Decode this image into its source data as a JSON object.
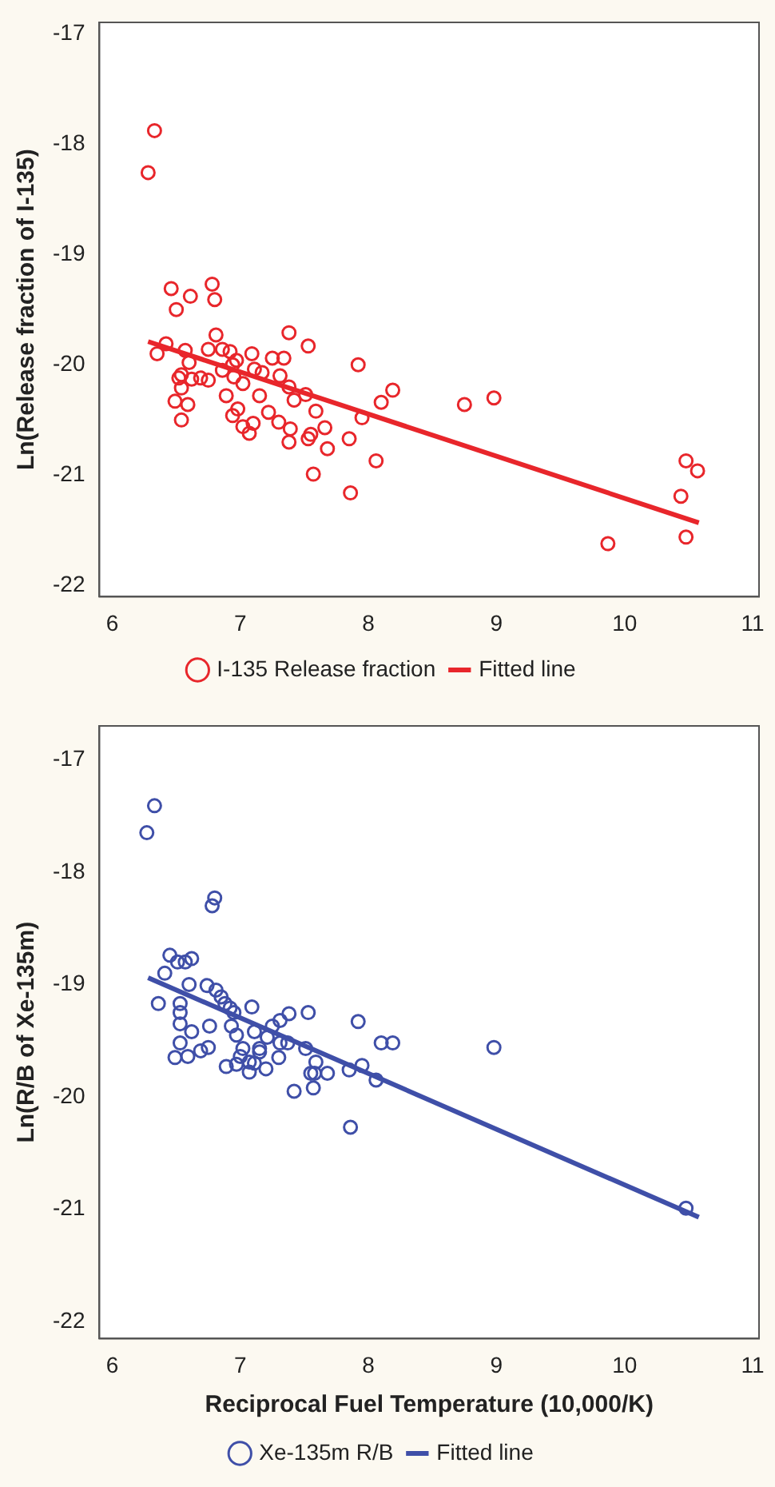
{
  "chart_data": [
    {
      "type": "scatter",
      "ylabel": "Ln(Release fraction of I-135)",
      "xlim": [
        5.9,
        11.05
      ],
      "xticks": [
        6,
        7,
        8,
        9,
        10,
        11
      ],
      "ylim": [
        -22.1,
        -16.9
      ],
      "yticks": [
        -22,
        -21,
        -20,
        -19,
        -18,
        -17
      ],
      "grid": false,
      "legend": "bottom",
      "series": [
        {
          "name": "I-135 Release fraction",
          "color": "#e8262b",
          "marker": "circle",
          "x": [
            6.33,
            6.28,
            6.46,
            6.5,
            6.61,
            6.78,
            6.8,
            6.81,
            6.42,
            6.35,
            6.57,
            6.6,
            6.54,
            6.52,
            6.54,
            6.62,
            6.69,
            6.75,
            6.49,
            6.59,
            6.54,
            6.75,
            6.86,
            6.92,
            6.97,
            6.94,
            6.86,
            6.95,
            7.02,
            7.09,
            7.11,
            7.17,
            7.25,
            7.34,
            7.31,
            7.38,
            7.53,
            7.38,
            7.42,
            7.51,
            6.89,
            7.15,
            6.98,
            6.94,
            7.02,
            7.1,
            7.07,
            7.22,
            7.3,
            7.39,
            7.38,
            7.59,
            7.55,
            7.53,
            7.66,
            7.68,
            7.57,
            7.85,
            7.86,
            7.92,
            7.95,
            8.06,
            8.1,
            8.19,
            8.75,
            8.98,
            10.48,
            10.57,
            10.44,
            10.48,
            9.87
          ],
          "values": [
            -17.88,
            -18.26,
            -19.31,
            -19.5,
            -19.38,
            -19.27,
            -19.41,
            -19.73,
            -19.81,
            -19.9,
            -19.87,
            -19.98,
            -20.09,
            -20.12,
            -20.21,
            -20.13,
            -20.12,
            -20.14,
            -20.33,
            -20.36,
            -20.5,
            -19.86,
            -19.86,
            -19.88,
            -19.96,
            -20.0,
            -20.05,
            -20.11,
            -20.17,
            -19.9,
            -20.04,
            -20.07,
            -19.94,
            -19.94,
            -20.1,
            -19.71,
            -19.83,
            -20.2,
            -20.32,
            -20.27,
            -20.28,
            -20.28,
            -20.4,
            -20.46,
            -20.56,
            -20.53,
            -20.62,
            -20.43,
            -20.52,
            -20.58,
            -20.7,
            -20.42,
            -20.63,
            -20.67,
            -20.57,
            -20.76,
            -20.99,
            -20.67,
            -21.16,
            -20.0,
            -20.48,
            -20.87,
            -20.34,
            -20.23,
            -20.36,
            -20.3,
            -20.87,
            -20.96,
            -21.19,
            -21.56,
            -21.62
          ]
        },
        {
          "name": "Fitted line",
          "type": "line",
          "color": "#e8262b",
          "marker": "none",
          "x": [
            6.28,
            10.58
          ],
          "values": [
            -19.79,
            -21.43
          ]
        }
      ]
    },
    {
      "type": "scatter",
      "ylabel": "Ln(R/B of Xe-135m)",
      "xlabel": "Reciprocal Fuel Temperature (10,000/K)",
      "xlim": [
        5.9,
        11.05
      ],
      "xticks": [
        6,
        7,
        8,
        9,
        10,
        11
      ],
      "ylim": [
        -22.15,
        -16.7
      ],
      "yticks": [
        -22,
        -21,
        -20,
        -19,
        -18,
        -17
      ],
      "grid": false,
      "legend": "bottom",
      "series": [
        {
          "name": "Xe-135m R/B",
          "color": "#3f4fa8",
          "marker": "circle",
          "x": [
            6.33,
            6.27,
            6.8,
            6.78,
            6.45,
            6.51,
            6.57,
            6.62,
            6.41,
            6.6,
            6.36,
            6.53,
            6.53,
            6.53,
            6.62,
            6.53,
            6.49,
            6.59,
            6.69,
            6.75,
            6.76,
            6.74,
            6.81,
            6.85,
            6.88,
            6.92,
            6.95,
            7.09,
            6.93,
            6.97,
            7.11,
            7.02,
            7.15,
            7.15,
            7.21,
            7.25,
            7.31,
            7.38,
            7.31,
            7.37,
            7.3,
            6.89,
            6.97,
            7.0,
            7.07,
            7.07,
            7.11,
            7.2,
            7.53,
            7.51,
            7.59,
            7.55,
            7.58,
            7.68,
            7.42,
            7.57,
            7.85,
            7.86,
            7.92,
            7.95,
            8.06,
            8.1,
            8.19,
            8.98,
            10.48
          ],
          "values": [
            -17.41,
            -17.65,
            -18.23,
            -18.3,
            -18.74,
            -18.8,
            -18.8,
            -18.77,
            -18.9,
            -19.0,
            -19.17,
            -19.17,
            -19.25,
            -19.35,
            -19.42,
            -19.52,
            -19.65,
            -19.64,
            -19.59,
            -19.56,
            -19.37,
            -19.01,
            -19.05,
            -19.11,
            -19.17,
            -19.21,
            -19.25,
            -19.2,
            -19.37,
            -19.45,
            -19.42,
            -19.57,
            -19.57,
            -19.6,
            -19.47,
            -19.37,
            -19.32,
            -19.26,
            -19.52,
            -19.52,
            -19.65,
            -19.73,
            -19.71,
            -19.64,
            -19.69,
            -19.78,
            -19.7,
            -19.75,
            -19.25,
            -19.57,
            -19.69,
            -19.79,
            -19.79,
            -19.79,
            -19.95,
            -19.92,
            -19.76,
            -20.27,
            -19.33,
            -19.72,
            -19.85,
            -19.52,
            -19.52,
            -19.56,
            -20.99
          ]
        },
        {
          "name": "Fitted line",
          "type": "line",
          "color": "#3f4fa8",
          "marker": "none",
          "x": [
            6.28,
            10.58
          ],
          "values": [
            -18.94,
            -21.07
          ]
        }
      ]
    }
  ]
}
